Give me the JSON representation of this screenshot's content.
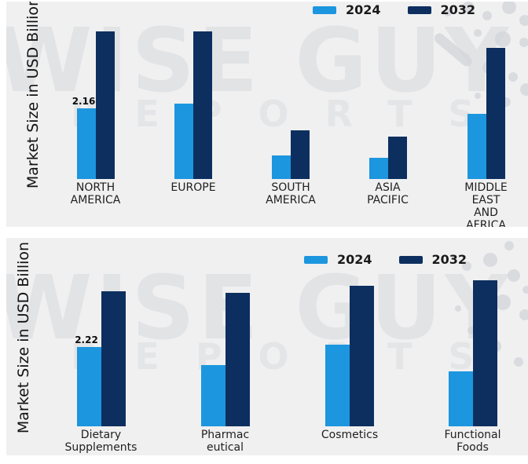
{
  "colors": {
    "bar_2024": "#1c96de",
    "bar_2032": "#0d2f5f",
    "panel_background": "#f0f0f1",
    "watermark": "#d6d9dd"
  },
  "watermark": {
    "line1": "WISE GUY",
    "line2": "REPORTS"
  },
  "chart_data": [
    {
      "type": "bar",
      "title": "",
      "xlabel": "",
      "ylabel": "Market Size in USD Billion",
      "ylim": [
        0,
        4.6
      ],
      "grid": false,
      "value_axis_visible": false,
      "legend_position": "top-right",
      "categories": [
        "NORTH\nAMERICA",
        "EUROPE",
        "SOUTH\nAMERICA",
        "ASIA\nPACIFIC",
        "MIDDLE\nEAST\nAND\nAFRICA"
      ],
      "series": [
        {
          "name": "2024",
          "values": [
            2.16,
            2.3,
            0.72,
            0.65,
            1.99
          ]
        },
        {
          "name": "2032",
          "values": [
            4.51,
            4.51,
            1.49,
            1.3,
            4.01
          ]
        }
      ],
      "bar_label": {
        "category_index": 0,
        "series_index": 0,
        "text": "2.16"
      }
    },
    {
      "type": "bar",
      "title": "",
      "xlabel": "",
      "ylabel": "Market Size in USD Billion",
      "ylim": [
        0,
        4.2
      ],
      "grid": false,
      "value_axis_visible": false,
      "legend_position": "top-right",
      "categories": [
        "Dietary\nSupplements",
        "Pharmac\neutical\ns",
        "Cosmetics",
        "Functional\nFoods"
      ],
      "series": [
        {
          "name": "2024",
          "values": [
            2.22,
            1.71,
            2.29,
            1.54
          ]
        },
        {
          "name": "2032",
          "values": [
            3.78,
            3.74,
            3.94,
            4.09
          ]
        }
      ],
      "bar_label": {
        "category_index": 0,
        "series_index": 0,
        "text": "2.22"
      }
    }
  ]
}
